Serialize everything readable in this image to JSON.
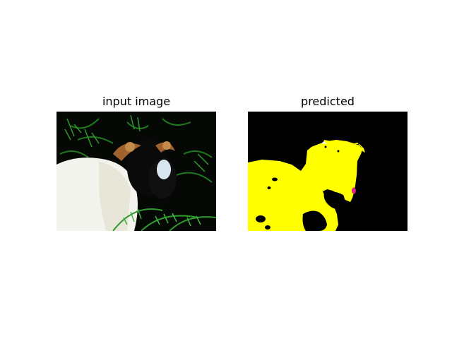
{
  "figure": {
    "background_color": "#ffffff",
    "panels": [
      {
        "title": "input image",
        "content": "photo-sheep-ram-lying-in-ferns",
        "colors": {
          "dark": "#050805",
          "fleece": "#f4f4ee",
          "fern": "#1f7a1f",
          "horn": "#a0622d"
        }
      },
      {
        "title": "predicted",
        "content": "segmentation-mask",
        "colors": {
          "background": "#000000",
          "sheep_class": "#ffff00",
          "other_class": "#e0208c",
          "light_class": "#ffffff"
        }
      }
    ]
  }
}
